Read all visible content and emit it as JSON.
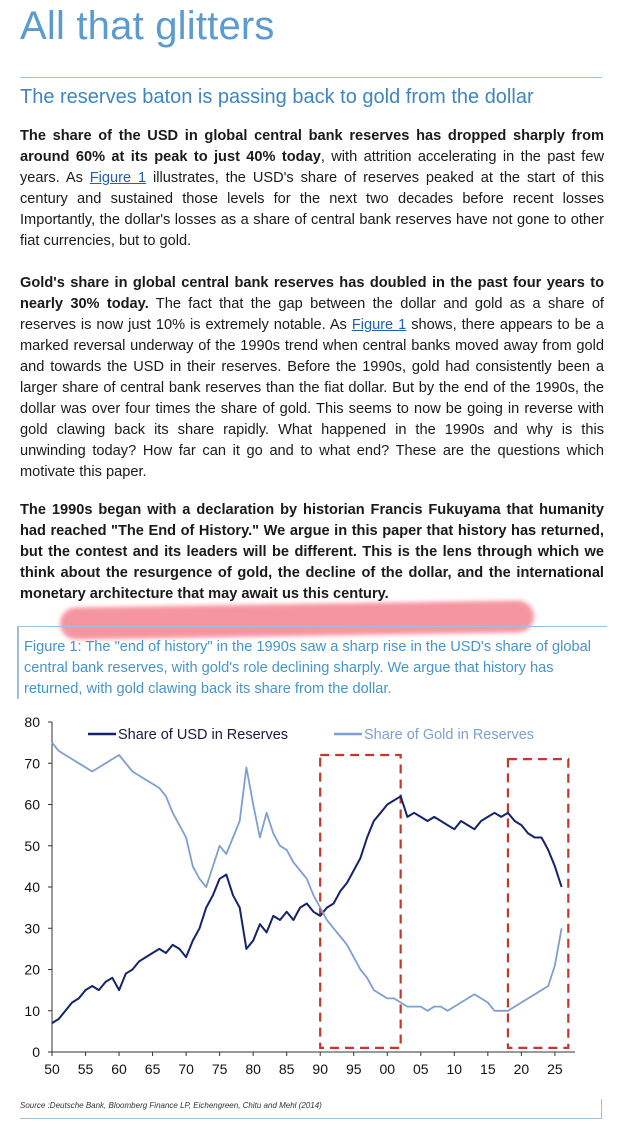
{
  "header": {
    "title": "All that glitters",
    "subtitle": "The reserves baton is passing back to gold from the dollar"
  },
  "paragraphs": {
    "p1": {
      "bold": "The share of the USD in global central bank reserves has dropped sharply from around 60% at its peak to just 40% today",
      "text1": ", with attrition accelerating in the past few years. As ",
      "link": "Figure 1",
      "text2": " illustrates, the USD's share of reserves peaked at the start of this century and sustained those levels for the next two decades before recent losses Importantly, the dollar's losses as a share of central bank reserves have not gone to other fiat currencies, but to gold."
    },
    "p2": {
      "bold": "Gold's share in global central bank reserves has doubled in the past four years to nearly 30% today.",
      "text1": " The fact that the gap between the dollar and gold as a share of reserves is now just 10% is extremely notable. As ",
      "link": "Figure 1",
      "text2": " shows, there appears to be a marked reversal underway of the 1990s trend when central banks moved away from gold and towards the USD in their reserves. Before the 1990s, gold had consistently been a larger share of central bank reserves than the fiat dollar. But by the end of the 1990s, the dollar was over four times the share of gold. This seems to now be going in reverse with gold clawing back its share rapidly. What happened in the 1990s and why is this unwinding today? How far can it go and to what end? These are the questions which motivate this paper."
    },
    "p3": "The 1990s began with a declaration by historian Francis Fukuyama that humanity had reached \"The End of History.\" We argue in this paper that history has returned, but the contest and its leaders will be different. This is the lens through which we think about the resurgence of gold, the decline of the dollar, and the international monetary architecture that may await us this century."
  },
  "figure": {
    "caption": "Figure 1: The \"end of history\" in the 1990s saw a sharp rise in the USD's share of global central bank reserves, with gold's role declining sharply. We argue that history has returned, with gold clawing back its share from the dollar.",
    "source": "Source :Deutsche Bank, Bloomberg Finance LP, Eichengreen, Chitu and Mehl (2014)"
  },
  "colors": {
    "usd": "#14246b",
    "gold": "#7f9fd0",
    "box": "#c0392b",
    "highlight": "#f26d7c"
  },
  "chart_data": {
    "type": "line",
    "title": "",
    "xlabel": "",
    "ylabel": "",
    "xlim": [
      1950,
      2028
    ],
    "ylim": [
      0,
      80
    ],
    "x_ticks": [
      1950,
      1955,
      1960,
      1965,
      1970,
      1975,
      1980,
      1985,
      1990,
      1995,
      2000,
      2005,
      2010,
      2015,
      2020,
      2025
    ],
    "x_tick_labels": [
      "50",
      "55",
      "60",
      "65",
      "70",
      "75",
      "80",
      "85",
      "90",
      "95",
      "00",
      "05",
      "10",
      "15",
      "20",
      "25"
    ],
    "y_ticks": [
      0,
      10,
      20,
      30,
      40,
      50,
      60,
      70,
      80
    ],
    "y_tick_labels": [
      "0",
      "10",
      "20",
      "30",
      "40",
      "50",
      "60",
      "70",
      "80"
    ],
    "grid": false,
    "legend": "top",
    "series": [
      {
        "name": "Share of USD in Reserves",
        "x": [
          1950,
          1951,
          1952,
          1953,
          1954,
          1955,
          1956,
          1957,
          1958,
          1959,
          1960,
          1961,
          1962,
          1963,
          1964,
          1965,
          1966,
          1967,
          1968,
          1969,
          1970,
          1971,
          1972,
          1973,
          1974,
          1975,
          1976,
          1977,
          1978,
          1979,
          1980,
          1981,
          1982,
          1983,
          1984,
          1985,
          1986,
          1987,
          1988,
          1989,
          1990,
          1991,
          1992,
          1993,
          1994,
          1995,
          1996,
          1997,
          1998,
          1999,
          2000,
          2001,
          2002,
          2003,
          2004,
          2005,
          2006,
          2007,
          2008,
          2009,
          2010,
          2011,
          2012,
          2013,
          2014,
          2015,
          2016,
          2017,
          2018,
          2019,
          2020,
          2021,
          2022,
          2023,
          2024,
          2025,
          2026
        ],
        "values": [
          7,
          8,
          10,
          12,
          13,
          15,
          16,
          15,
          17,
          18,
          15,
          19,
          20,
          22,
          23,
          24,
          25,
          24,
          26,
          25,
          23,
          27,
          30,
          35,
          38,
          42,
          43,
          38,
          35,
          25,
          27,
          31,
          29,
          33,
          32,
          34,
          32,
          35,
          36,
          34,
          33,
          35,
          36,
          39,
          41,
          44,
          47,
          52,
          56,
          58,
          60,
          61,
          62,
          57,
          58,
          57,
          56,
          57,
          56,
          55,
          54,
          56,
          55,
          54,
          56,
          57,
          58,
          57,
          58,
          56,
          55,
          53,
          52,
          52,
          49,
          45,
          40
        ]
      },
      {
        "name": "Share of Gold in Reserves",
        "x": [
          1950,
          1951,
          1952,
          1953,
          1954,
          1955,
          1956,
          1957,
          1958,
          1959,
          1960,
          1961,
          1962,
          1963,
          1964,
          1965,
          1966,
          1967,
          1968,
          1969,
          1970,
          1971,
          1972,
          1973,
          1974,
          1975,
          1976,
          1977,
          1978,
          1979,
          1980,
          1981,
          1982,
          1983,
          1984,
          1985,
          1986,
          1987,
          1988,
          1989,
          1990,
          1991,
          1992,
          1993,
          1994,
          1995,
          1996,
          1997,
          1998,
          1999,
          2000,
          2001,
          2002,
          2003,
          2004,
          2005,
          2006,
          2007,
          2008,
          2009,
          2010,
          2011,
          2012,
          2013,
          2014,
          2015,
          2016,
          2017,
          2018,
          2019,
          2020,
          2021,
          2022,
          2023,
          2024,
          2025,
          2026
        ],
        "values": [
          75,
          73,
          72,
          71,
          70,
          69,
          68,
          69,
          70,
          71,
          72,
          70,
          68,
          67,
          66,
          65,
          64,
          62,
          58,
          55,
          52,
          45,
          42,
          40,
          45,
          50,
          48,
          52,
          56,
          69,
          60,
          52,
          58,
          53,
          50,
          49,
          46,
          44,
          42,
          38,
          35,
          32,
          30,
          28,
          26,
          23,
          20,
          18,
          15,
          14,
          13,
          13,
          12,
          11,
          11,
          11,
          10,
          11,
          11,
          10,
          11,
          12,
          13,
          14,
          13,
          12,
          10,
          10,
          10,
          11,
          12,
          13,
          14,
          15,
          16,
          21,
          30
        ]
      }
    ],
    "annotations": [
      {
        "type": "dashed-box",
        "x_range": [
          1990,
          2002
        ],
        "y_range": [
          1,
          72
        ]
      },
      {
        "type": "dashed-box",
        "x_range": [
          2018,
          2027
        ],
        "y_range": [
          1,
          71
        ]
      }
    ]
  }
}
